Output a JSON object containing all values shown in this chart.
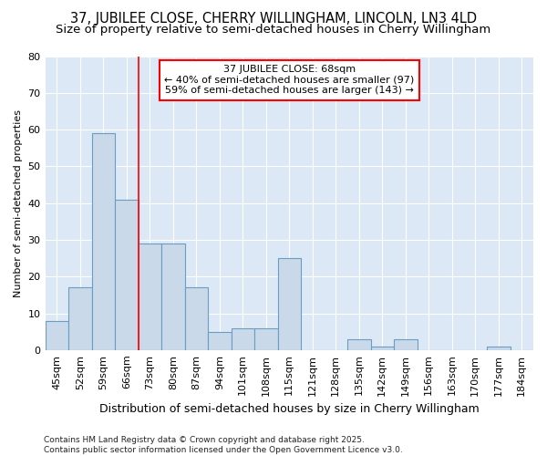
{
  "title": "37, JUBILEE CLOSE, CHERRY WILLINGHAM, LINCOLN, LN3 4LD",
  "subtitle": "Size of property relative to semi-detached houses in Cherry Willingham",
  "xlabel": "Distribution of semi-detached houses by size in Cherry Willingham",
  "ylabel": "Number of semi-detached properties",
  "categories": [
    "45sqm",
    "52sqm",
    "59sqm",
    "66sqm",
    "73sqm",
    "80sqm",
    "87sqm",
    "94sqm",
    "101sqm",
    "108sqm",
    "115sqm",
    "121sqm",
    "128sqm",
    "135sqm",
    "142sqm",
    "149sqm",
    "156sqm",
    "163sqm",
    "170sqm",
    "177sqm",
    "184sqm"
  ],
  "values": [
    8,
    17,
    59,
    41,
    29,
    29,
    17,
    5,
    6,
    6,
    25,
    0,
    0,
    3,
    1,
    3,
    0,
    0,
    0,
    1,
    0
  ],
  "bar_color": "#c9d9ea",
  "bar_edge_color": "#6a9ec0",
  "vline_x": 3.5,
  "vline_color": "red",
  "annotation_title": "37 JUBILEE CLOSE: 68sqm",
  "annotation_line1": "← 40% of semi-detached houses are smaller (97)",
  "annotation_line2": "59% of semi-detached houses are larger (143) →",
  "annotation_box_facecolor": "white",
  "annotation_box_edgecolor": "red",
  "ylim": [
    0,
    80
  ],
  "yticks": [
    0,
    10,
    20,
    30,
    40,
    50,
    60,
    70,
    80
  ],
  "fig_bg_color": "#ffffff",
  "plot_bg_color": "#dce8f5",
  "grid_color": "#ffffff",
  "footer": "Contains HM Land Registry data © Crown copyright and database right 2025.\nContains public sector information licensed under the Open Government Licence v3.0.",
  "title_fontsize": 10.5,
  "subtitle_fontsize": 9.5,
  "xlabel_fontsize": 9,
  "ylabel_fontsize": 8,
  "tick_fontsize": 8,
  "annotation_fontsize": 8,
  "footer_fontsize": 6.5
}
